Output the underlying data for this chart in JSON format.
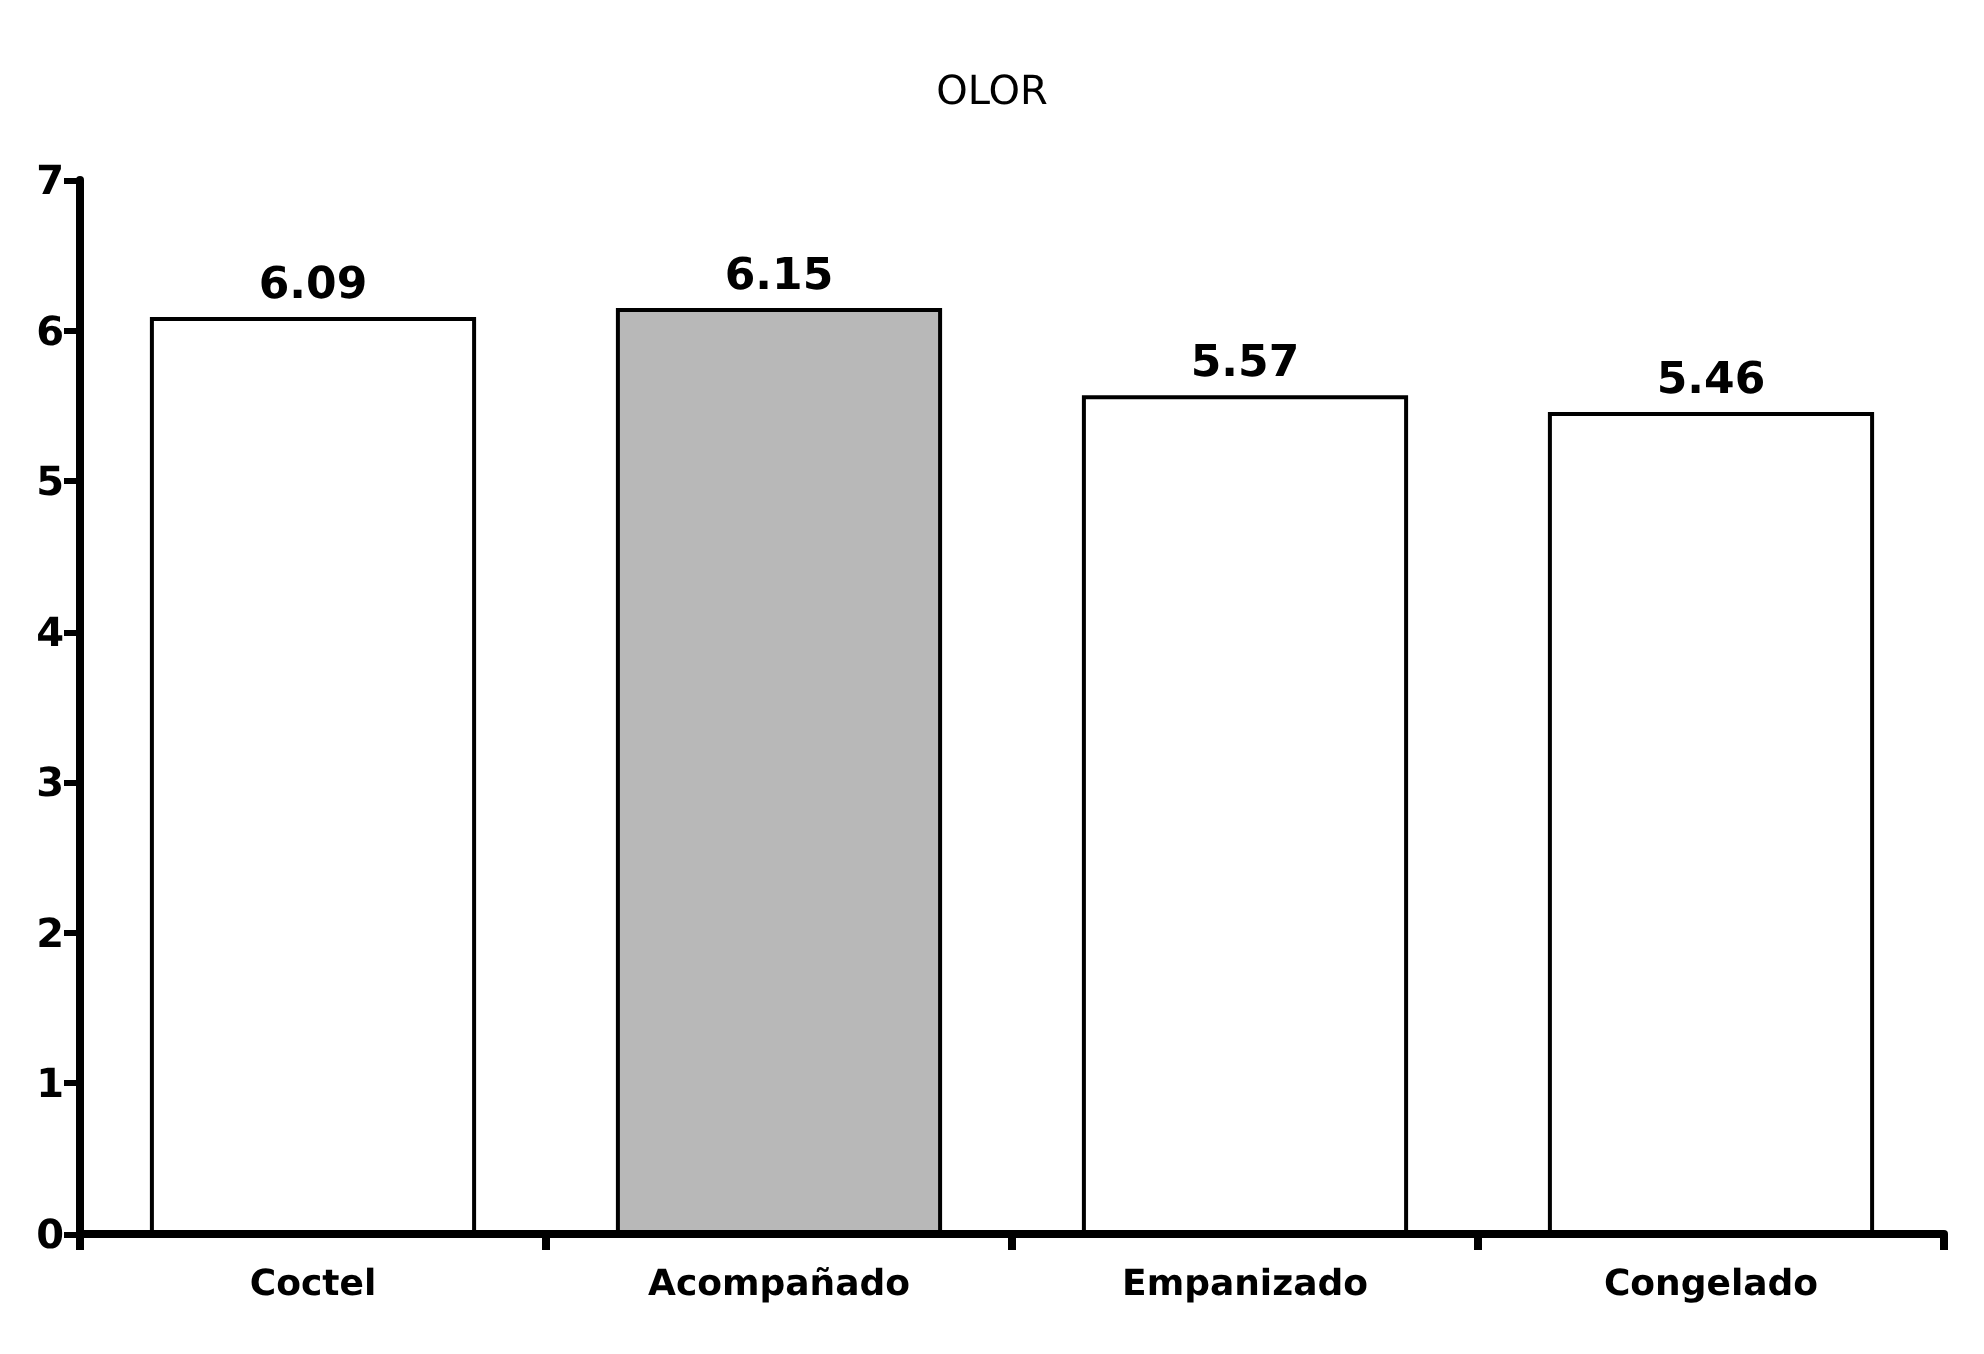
{
  "chart_data": {
    "type": "bar",
    "title": "OLOR",
    "categories": [
      "Coctel",
      "Acompañado",
      "Empanizado",
      "Congelado"
    ],
    "values": [
      6.09,
      6.15,
      5.57,
      5.46
    ],
    "colors": [
      "#ffffff",
      "#b8b8b8",
      "#ffffff",
      "#ffffff"
    ],
    "ylim": [
      0,
      7
    ],
    "yticks": [
      0,
      1,
      2,
      3,
      4,
      5,
      6,
      7
    ],
    "grid": false,
    "data_labels": true
  }
}
